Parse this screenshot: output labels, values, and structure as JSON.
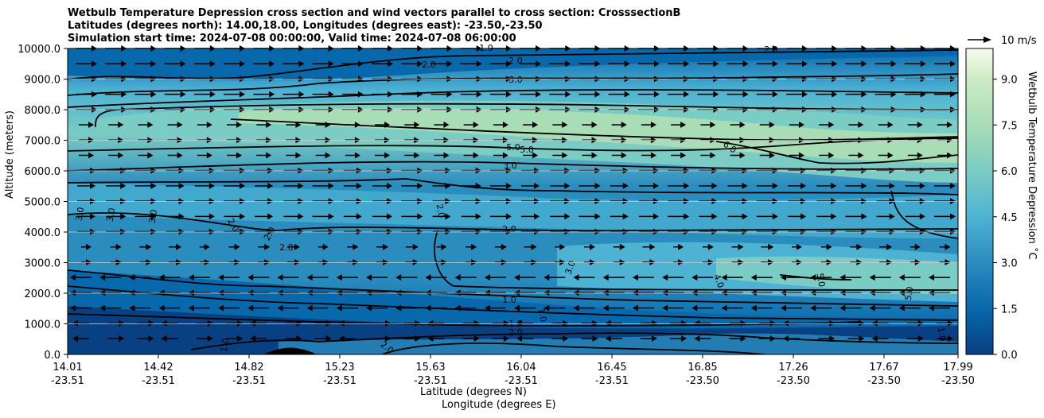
{
  "title_lines": [
    "Wetbulb Temperature Depression cross section and wind vectors parallel to cross section: CrosssectionB",
    "Latitudes (degrees north): 14.00,18.00, Longitudes (degrees east): -23.50,-23.50",
    "Simulation start time: 2024-07-08 00:00:00, Valid time: 2024-07-08 06:00:00"
  ],
  "chart_data": {
    "type": "contour",
    "xlabel_lat": "Latitude (degrees N)",
    "xlabel_lon": "Longitude (degrees E)",
    "ylabel": "Altitude (meters)",
    "ylim": [
      0,
      10000
    ],
    "y_ticks": [
      "0.0",
      "1000.0",
      "2000.0",
      "3000.0",
      "4000.0",
      "5000.0",
      "6000.0",
      "7000.0",
      "8000.0",
      "9000.0",
      "10000.0"
    ],
    "x_ticks": [
      {
        "lat": "14.01",
        "lon": "-23.51"
      },
      {
        "lat": "14.42",
        "lon": "-23.51"
      },
      {
        "lat": "14.82",
        "lon": "-23.51"
      },
      {
        "lat": "15.23",
        "lon": "-23.51"
      },
      {
        "lat": "15.63",
        "lon": "-23.51"
      },
      {
        "lat": "16.04",
        "lon": "-23.51"
      },
      {
        "lat": "16.45",
        "lon": "-23.51"
      },
      {
        "lat": "16.85",
        "lon": "-23.50"
      },
      {
        "lat": "17.26",
        "lon": "-23.50"
      },
      {
        "lat": "17.67",
        "lon": "-23.50"
      },
      {
        "lat": "17.99",
        "lon": "-23.50"
      }
    ],
    "colorbar": {
      "label": "Wetbulb Temperature Depression ˚C",
      "range": [
        0,
        10
      ],
      "ticks": [
        "0.0",
        "1.5",
        "3.0",
        "4.5",
        "6.0",
        "7.5",
        "9.0"
      ],
      "tick_values": [
        0,
        1.5,
        3,
        4.5,
        6,
        7.5,
        9
      ]
    },
    "contour_labels": [
      "1.0",
      "2.0",
      "3.0",
      "4.0",
      "5.0",
      "6.0"
    ],
    "wind_key": "10 m/s"
  }
}
